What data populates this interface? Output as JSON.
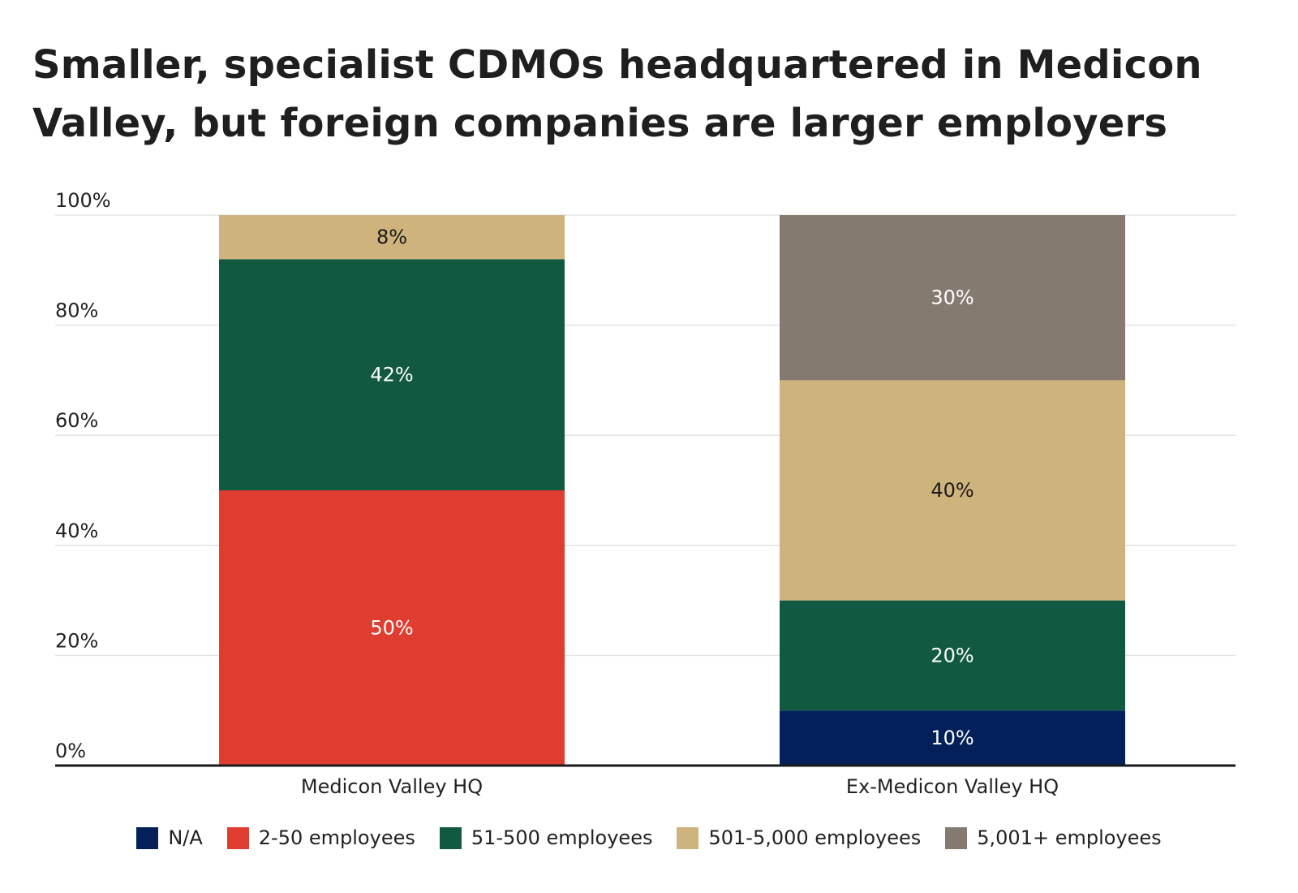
{
  "title_lines": [
    "Smaller, specialist CDMOs headquartered in Medicon",
    "Valley, but foreign companies are larger employers"
  ],
  "colors": {
    "na": "#03205a",
    "small": "#e03d31",
    "medium": "#125941",
    "large": "#cfb37d",
    "xlarge": "#847a6f"
  },
  "legend": [
    {
      "label": "N/A",
      "color": "#03205a"
    },
    {
      "label": "2-50 employees",
      "color": "#e03d31"
    },
    {
      "label": "51-500 employees",
      "color": "#125941"
    },
    {
      "label": "501-5,000 employees",
      "color": "#cfb37d"
    },
    {
      "label": "5,001+ employees",
      "color": "#847a6f"
    }
  ],
  "chart_data": {
    "type": "bar",
    "stacked": true,
    "title": "Smaller, specialist CDMOs headquartered in Medicon Valley, but foreign companies are larger employers",
    "categories": [
      "Medicon Valley HQ",
      "Ex-Medicon Valley HQ"
    ],
    "series": [
      {
        "name": "N/A",
        "color": "#03205a",
        "values": [
          0,
          10
        ],
        "labels": [
          "",
          "10%"
        ],
        "label_color": "#ffffff"
      },
      {
        "name": "2-50 employees",
        "color": "#e03d31",
        "values": [
          50,
          0
        ],
        "labels": [
          "50%",
          ""
        ],
        "label_color": "#ffffff"
      },
      {
        "name": "51-500 employees",
        "color": "#125941",
        "values": [
          42,
          20
        ],
        "labels": [
          "42%",
          "20%"
        ],
        "label_color": "#ffffff"
      },
      {
        "name": "501-5,000 employees",
        "color": "#cfb37d",
        "values": [
          8,
          40
        ],
        "labels": [
          "8%",
          "40%"
        ],
        "label_color": "#1a1a1a"
      },
      {
        "name": "5,001+ employees",
        "color": "#847a6f",
        "values": [
          0,
          30
        ],
        "labels": [
          "",
          "30%"
        ],
        "label_color": "#ffffff"
      }
    ],
    "y_ticks": [
      0,
      20,
      40,
      60,
      80,
      100
    ],
    "y_tick_labels": [
      "0%",
      "20%",
      "40%",
      "60%",
      "80%",
      "100%"
    ],
    "ylim": [
      0,
      100
    ],
    "grid": true,
    "legend_position": "bottom"
  }
}
